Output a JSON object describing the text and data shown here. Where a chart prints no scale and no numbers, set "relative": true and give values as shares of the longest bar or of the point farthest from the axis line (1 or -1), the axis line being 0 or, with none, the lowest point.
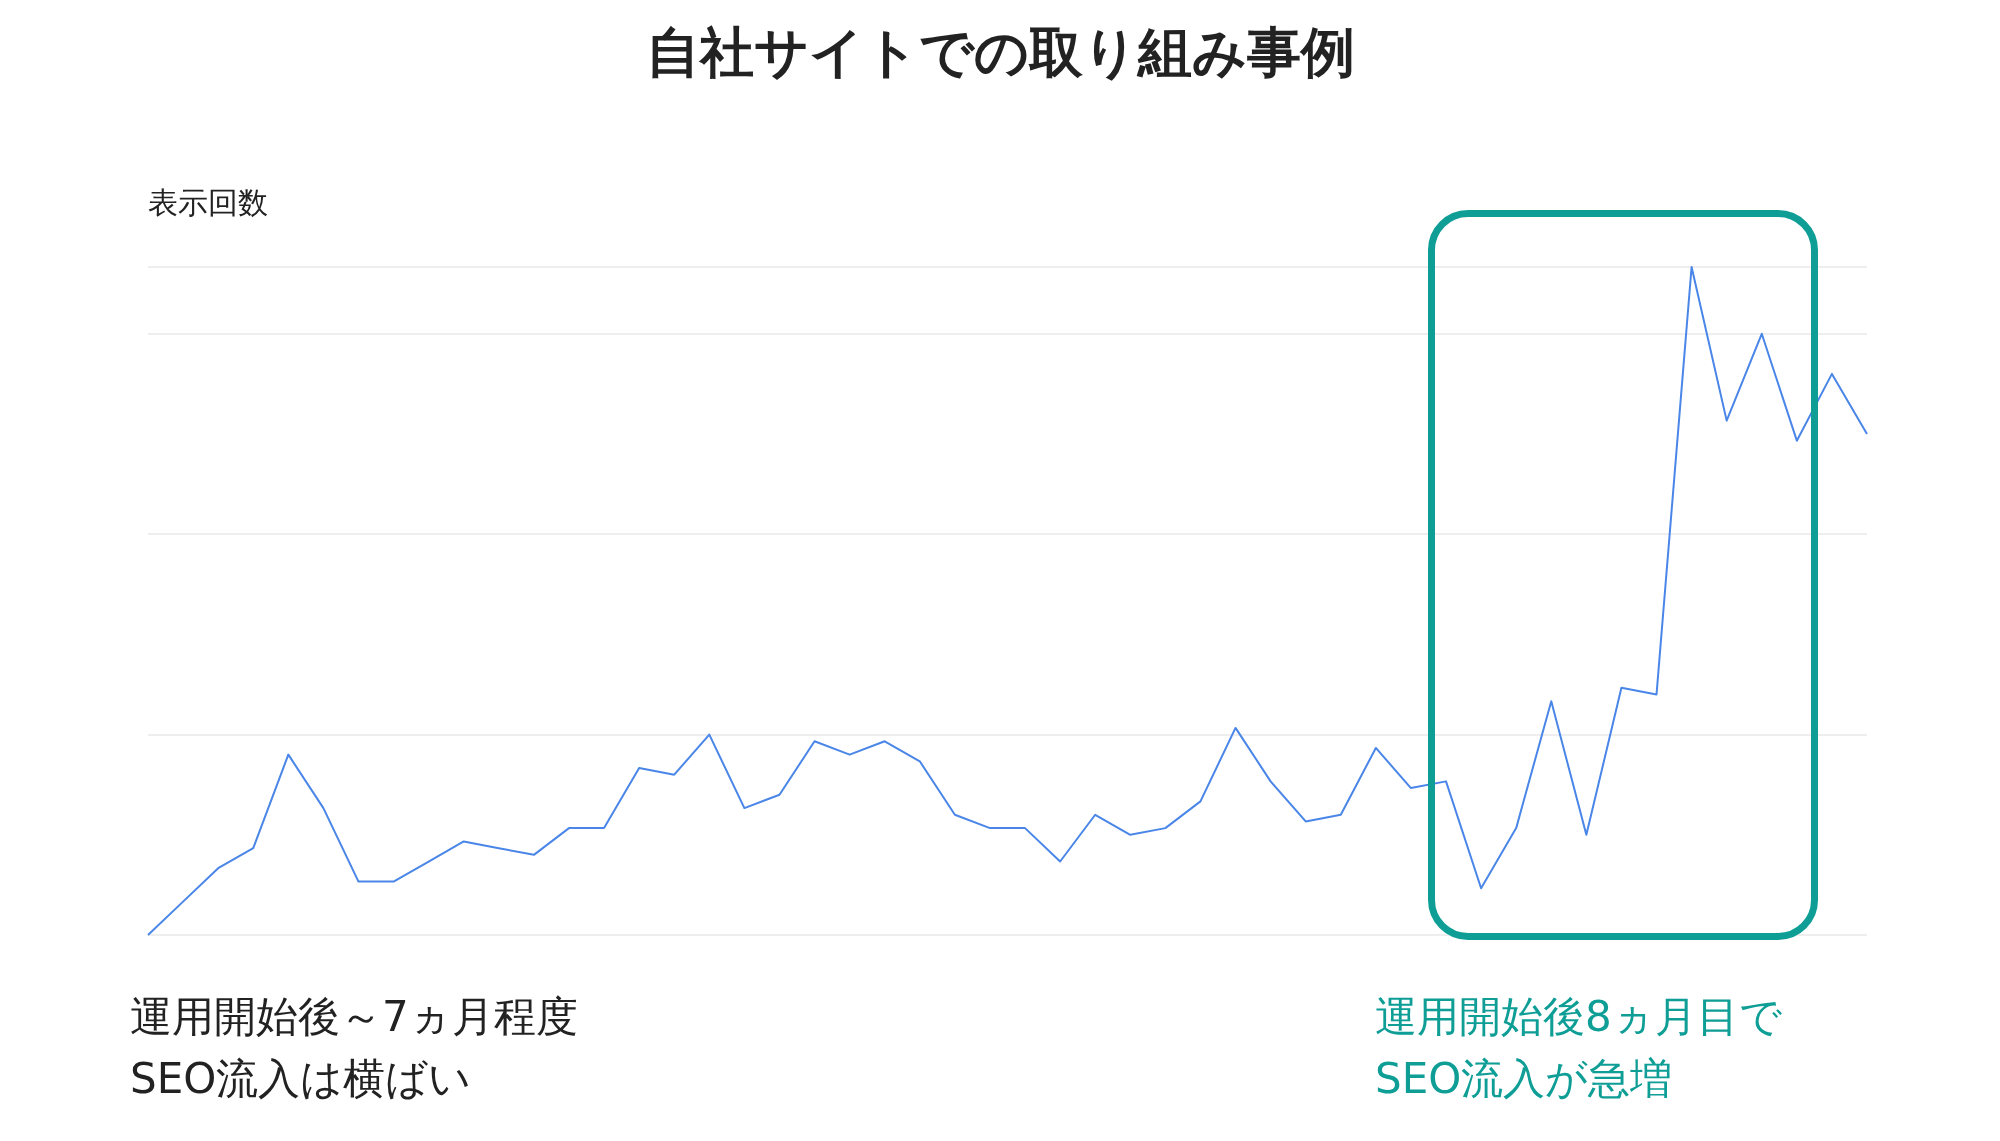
{
  "chart_data": {
    "type": "line",
    "title": "自社サイトでの取り組み事例",
    "ylabel": "表示回数",
    "relative": true,
    "grid": "y",
    "marker": "none",
    "categories": [
      null,
      null,
      null,
      null,
      null,
      null,
      null,
      null,
      null,
      null,
      null,
      null,
      null,
      null,
      null,
      null,
      null,
      null,
      null,
      null,
      null,
      null,
      null,
      null,
      null,
      null,
      null,
      null,
      null,
      null,
      null,
      null,
      null,
      null,
      null,
      null,
      null,
      null,
      null,
      null,
      null,
      null,
      null,
      null,
      null,
      null,
      null,
      null,
      null,
      null
    ],
    "series": [
      {
        "color": "#4a86e8",
        "values": [
          0,
          0.05,
          0.1,
          0.13,
          0.27,
          0.19,
          0.08,
          0.08,
          0.11,
          0.14,
          0.13,
          0.12,
          0.16,
          0.16,
          0.25,
          0.24,
          0.3,
          0.19,
          0.21,
          0.29,
          0.27,
          0.29,
          0.26,
          0.18,
          0.16,
          0.16,
          0.11,
          0.18,
          0.15,
          0.16,
          0.2,
          0.31,
          0.23,
          0.17,
          0.18,
          0.28,
          0.22,
          0.23,
          0.07,
          0.16,
          0.35,
          0.15,
          0.37,
          0.36,
          1,
          0.77,
          0.9,
          0.74,
          0.84,
          0.75
        ]
      }
    ],
    "annotations": [
      "運用開始後～7ヵ月程度\nSEO流入は横ばい",
      "運用開始後8ヵ月目で\nSEO流入が急増"
    ]
  }
}
